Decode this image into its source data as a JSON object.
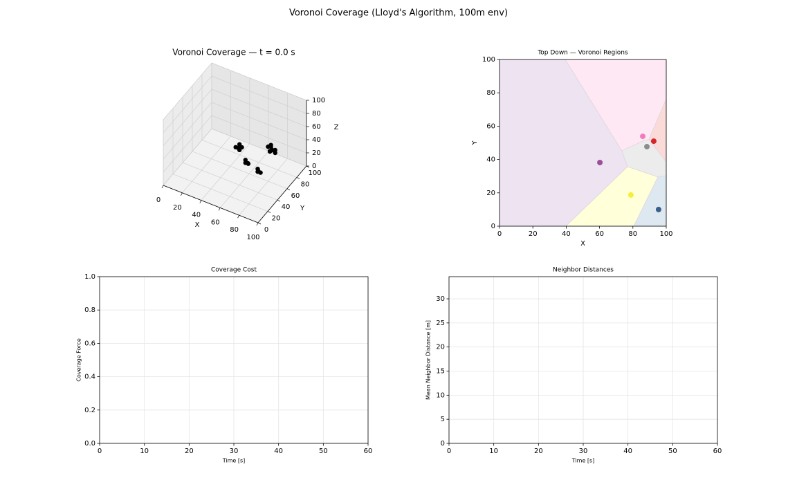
{
  "title": "Voronoi Coverage (Lloyd's Algorithm, 100m env)",
  "chart_data": [
    {
      "type": "scatter3d",
      "title": "Voronoi Coverage — t = 0.0 s",
      "xlabel": "X",
      "ylabel": "Y",
      "zlabel": "Z",
      "xlim": [
        0,
        100
      ],
      "ylim": [
        0,
        100
      ],
      "zlim": [
        0,
        100
      ],
      "xticks": [
        0,
        20,
        40,
        60,
        80,
        100
      ],
      "yticks": [
        0,
        20,
        40,
        60,
        80,
        100
      ],
      "zticks": [
        0,
        20,
        40,
        60,
        80,
        100
      ],
      "color": "#000000",
      "x": [
        58,
        62,
        60,
        59,
        63,
        78,
        80,
        81,
        77,
        95,
        97,
        96,
        94,
        86,
        88,
        92,
        85,
        90,
        89,
        93,
        87,
        91
      ],
      "y": [
        36,
        36,
        40,
        39,
        39,
        17,
        19,
        16,
        19,
        9,
        11,
        8,
        11,
        54,
        48,
        51,
        50,
        53,
        46,
        49,
        52,
        47
      ],
      "z": [
        60,
        58,
        62,
        57,
        60,
        64,
        62,
        66,
        66,
        67,
        65,
        70,
        69,
        61,
        60,
        62,
        64,
        58,
        63,
        60,
        66,
        65
      ]
    },
    {
      "type": "scatter",
      "title": "Top Down — Voronoi Regions",
      "xlabel": "X",
      "ylabel": "Y",
      "xlim": [
        0,
        100
      ],
      "ylim": [
        0,
        100
      ],
      "xticks": [
        0,
        20,
        40,
        60,
        80,
        100
      ],
      "yticks": [
        0,
        20,
        40,
        60,
        80,
        100
      ],
      "regions": [
        {
          "color": "#ede3f1",
          "x": [
            0,
            39.4,
            73.4,
            76.8,
            39.8,
            0
          ],
          "y": [
            100,
            100,
            45.2,
            35.7,
            0,
            0
          ]
        },
        {
          "color": "#fde8f3",
          "x": [
            39.4,
            100,
            100,
            89.6,
            87,
            73.4
          ],
          "y": [
            100,
            100,
            76.3,
            52,
            51.5,
            45.2
          ]
        },
        {
          "color": "#fadbd8",
          "x": [
            89.6,
            100,
            100
          ],
          "y": [
            52,
            76.3,
            38.6
          ]
        },
        {
          "color": "#ececec",
          "x": [
            73.4,
            87,
            89.6,
            100,
            100,
            95,
            76.8
          ],
          "y": [
            45.2,
            51.5,
            52,
            38.6,
            30.3,
            29.5,
            35.7
          ]
        },
        {
          "color": "#ffffd9",
          "x": [
            76.8,
            95,
            80.5,
            39.8
          ],
          "y": [
            35.7,
            29.5,
            0,
            0
          ]
        },
        {
          "color": "#dde8f0",
          "x": [
            95,
            100,
            100,
            80.5
          ],
          "y": [
            29.5,
            30.3,
            0,
            0
          ]
        }
      ],
      "x": [
        60.2,
        78.8,
        95.4,
        85.9,
        88.4,
        92.5
      ],
      "y": [
        38.2,
        18.7,
        10,
        53.9,
        47.7,
        51
      ],
      "colors": [
        "#9b4f96",
        "#f5ef3a",
        "#3a5f8a",
        "#f07cc0",
        "#8c8c8c",
        "#d62728"
      ]
    },
    {
      "type": "line",
      "title": "Coverage Cost",
      "xlabel": "Time [s]",
      "ylabel": "Coverage Force",
      "xlim": [
        0,
        60
      ],
      "ylim": [
        0,
        1
      ],
      "xticks": [
        0,
        10,
        20,
        30,
        40,
        50,
        60
      ],
      "yticks": [
        {
          "value": 0,
          "label": "0.0"
        },
        {
          "value": 0.2,
          "label": "0.2"
        },
        {
          "value": 0.4,
          "label": "0.4"
        },
        {
          "value": 0.6,
          "label": "0.6"
        },
        {
          "value": 0.8,
          "label": "0.8"
        },
        {
          "value": 1,
          "label": "1.0"
        }
      ],
      "grid": true
    },
    {
      "type": "line",
      "title": "Neighbor Distances",
      "xlabel": "Time [s]",
      "ylabel": "Mean Neighbor Distance [m]",
      "xlim": [
        0,
        60
      ],
      "ylim": [
        0,
        34.6
      ],
      "xticks": [
        0,
        10,
        20,
        30,
        40,
        50,
        60
      ],
      "yticks": [
        0,
        5,
        10,
        15,
        20,
        25,
        30
      ],
      "grid": true
    }
  ]
}
